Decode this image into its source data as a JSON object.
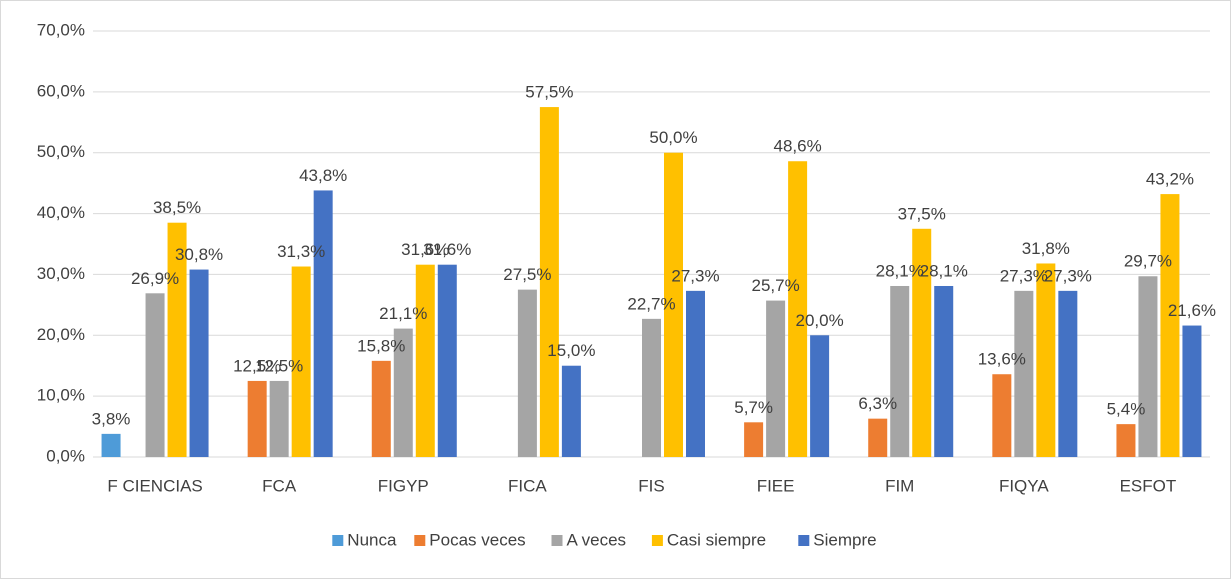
{
  "chart_data": {
    "type": "bar",
    "categories": [
      "F CIENCIAS",
      "FCA",
      "FIGYP",
      "FICA",
      "FIS",
      "FIEE",
      "FIM",
      "FIQYA",
      "ESFOT"
    ],
    "series": [
      {
        "name": "Nunca",
        "color": "#4e9bd8",
        "values": [
          3.8,
          null,
          null,
          null,
          null,
          null,
          null,
          null,
          null
        ],
        "value_labels": [
          "3,8%",
          null,
          null,
          null,
          null,
          null,
          null,
          null,
          null
        ]
      },
      {
        "name": "Pocas veces",
        "color": "#ed7d31",
        "values": [
          null,
          12.5,
          15.8,
          null,
          null,
          5.7,
          6.3,
          13.6,
          5.4
        ],
        "value_labels": [
          null,
          "12,5%",
          "15,8%",
          null,
          null,
          "5,7%",
          "6,3%",
          "13,6%",
          "5,4%"
        ]
      },
      {
        "name": "A veces",
        "color": "#a5a5a5",
        "values": [
          26.9,
          12.5,
          21.1,
          27.5,
          22.7,
          25.7,
          28.1,
          27.3,
          29.7
        ],
        "value_labels": [
          "26,9%",
          "12,5%",
          "21,1%",
          "27,5%",
          "22,7%",
          "25,7%",
          "28,1%",
          "27,3%",
          "29,7%"
        ]
      },
      {
        "name": "Casi siempre",
        "color": "#ffc000",
        "values": [
          38.5,
          31.3,
          31.6,
          57.5,
          50.0,
          48.6,
          37.5,
          31.8,
          43.2
        ],
        "value_labels": [
          "38,5%",
          "31,3%",
          "31,6%",
          "57,5%",
          "50,0%",
          "48,6%",
          "37,5%",
          "31,8%",
          "43,2%"
        ]
      },
      {
        "name": "Siempre",
        "color": "#4472c4",
        "values": [
          30.8,
          43.8,
          31.6,
          15.0,
          27.3,
          20.0,
          28.1,
          27.3,
          21.6
        ],
        "value_labels": [
          "30,8%",
          "43,8%",
          "31,6%",
          "15,0%",
          "27,3%",
          "20,0%",
          "28,1%",
          "27,3%",
          "21,6%"
        ]
      }
    ],
    "ylim": [
      0,
      70
    ],
    "yticks": [
      {
        "value": 0,
        "label": "0,0%"
      },
      {
        "value": 10,
        "label": "10,0%"
      },
      {
        "value": 20,
        "label": "20,0%"
      },
      {
        "value": 30,
        "label": "30,0%"
      },
      {
        "value": 40,
        "label": "40,0%"
      },
      {
        "value": 50,
        "label": "50,0%"
      },
      {
        "value": 60,
        "label": "60,0%"
      },
      {
        "value": 70,
        "label": "70,0%"
      }
    ],
    "grid": true,
    "legend": "bottom"
  }
}
